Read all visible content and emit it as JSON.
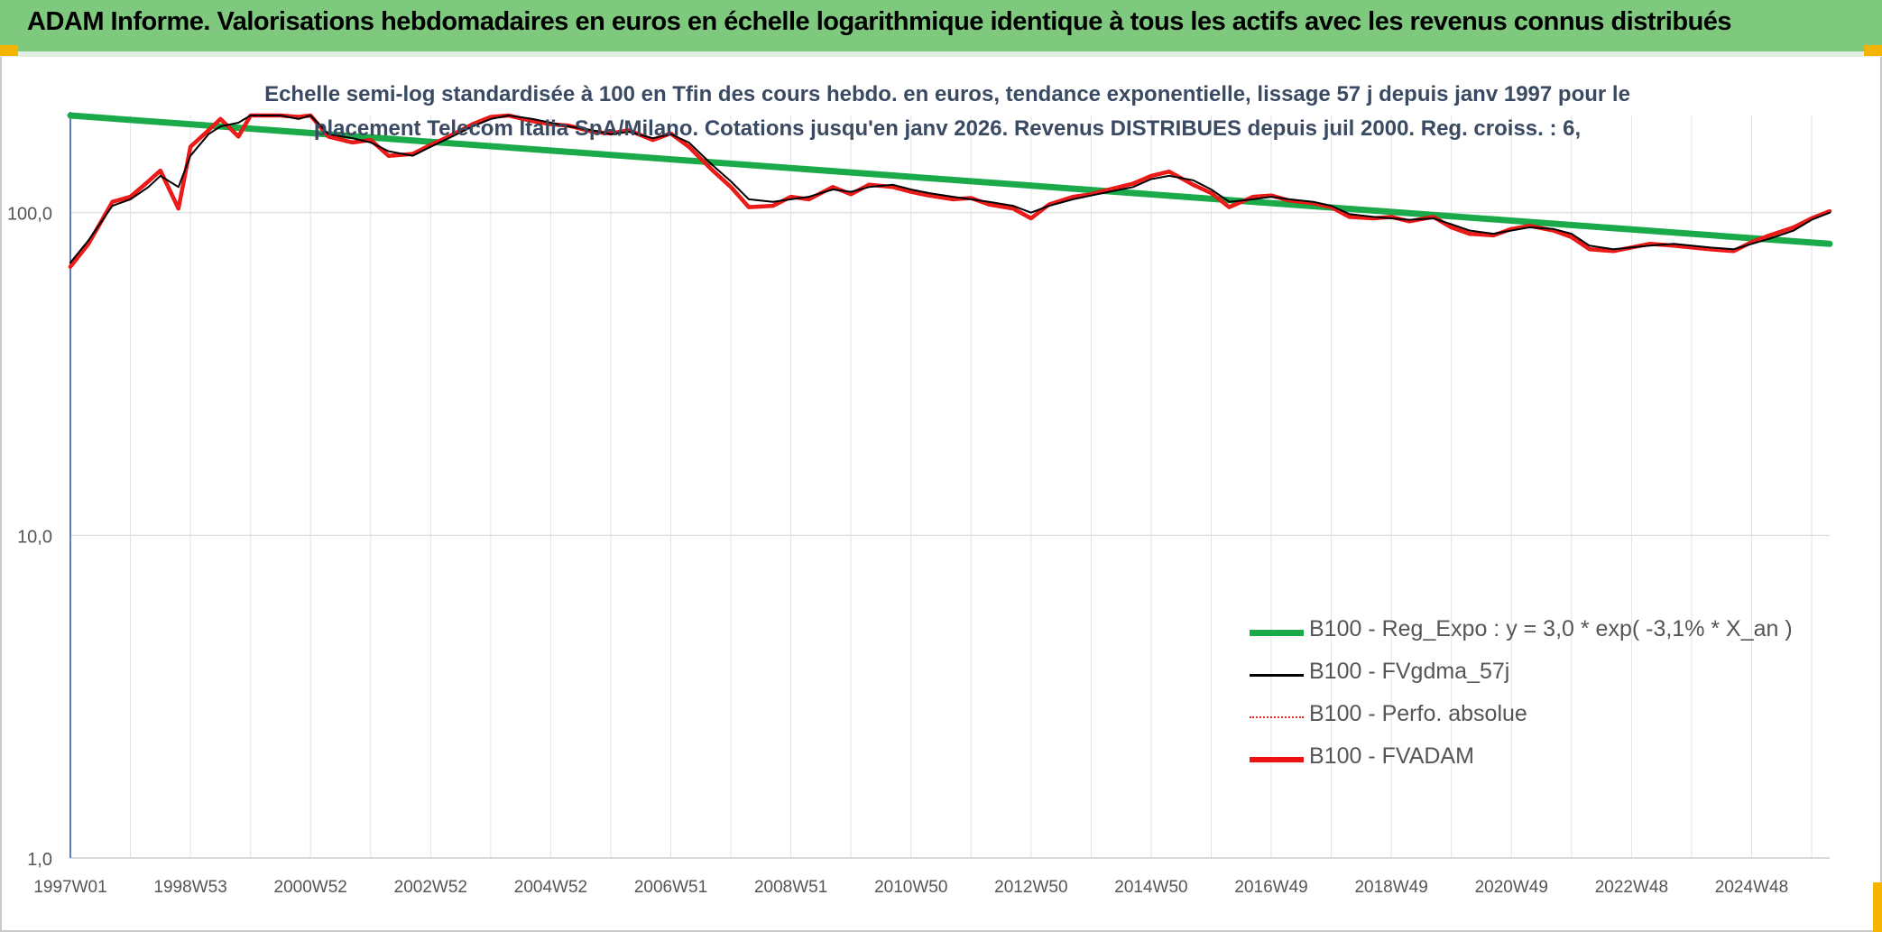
{
  "header": {
    "title": "ADAM Informe. Valorisations hebdomadaires en euros en échelle logarithmique identique à tous les actifs avec les revenus connus distribués"
  },
  "colors": {
    "header_bg": "#7fc97f",
    "accent_corner": "#f4b400",
    "subtitle_text": "#3b4a63",
    "trend_line": "#1aaa4a",
    "smoothed_line": "#000000",
    "perf_line": "#e8241e",
    "fvadam_line": "#ee1111"
  },
  "chart_data": {
    "type": "line",
    "title_lines": [
      "Echelle semi-log standardisée à 100 en Tfin des cours hebdo. en euros, tendance exponentielle, lissage 57 j depuis janv 1997 pour le",
      "placement Telecom Italia SpA/Milano. Cotations jusqu'en janv 2026. Revenus DISTRIBUES depuis juil 2000. Reg. croiss. : 6,"
    ],
    "yscale": "log",
    "ylim": [
      1,
      200
    ],
    "xlim": [
      1997.0,
      2026.3
    ],
    "y_ticks": [
      {
        "value": 1,
        "label": "1,0"
      },
      {
        "value": 10,
        "label": "10,0"
      },
      {
        "value": 100,
        "label": "100,0"
      }
    ],
    "x_ticks": [
      {
        "value": 1997.0,
        "label": "1997W01"
      },
      {
        "value": 1999.0,
        "label": "1998W53"
      },
      {
        "value": 2001.0,
        "label": "2000W52"
      },
      {
        "value": 2003.0,
        "label": "2002W52"
      },
      {
        "value": 2005.0,
        "label": "2004W52"
      },
      {
        "value": 2007.0,
        "label": "2006W51"
      },
      {
        "value": 2009.0,
        "label": "2008W51"
      },
      {
        "value": 2011.0,
        "label": "2010W50"
      },
      {
        "value": 2013.0,
        "label": "2012W50"
      },
      {
        "value": 2015.0,
        "label": "2014W50"
      },
      {
        "value": 2017.0,
        "label": "2016W49"
      },
      {
        "value": 2019.0,
        "label": "2018W49"
      },
      {
        "value": 2021.0,
        "label": "2020W49"
      },
      {
        "value": 2023.0,
        "label": "2022W48"
      },
      {
        "value": 2025.0,
        "label": "2024W48"
      }
    ],
    "grid": true,
    "legend_position": "bottom-right",
    "series": [
      {
        "key": "reg",
        "name": "B100 - Reg_Expo : y = 3,0 * exp( -3,1% *  X_an )",
        "style": "thick-green",
        "x": [
          1997.0,
          2026.3
        ],
        "y": [
          200,
          80
        ]
      },
      {
        "key": "fvgdma",
        "name": "B100 - FVgdma_57j",
        "style": "thin-black",
        "x": [
          1997.0,
          1997.3,
          1997.7,
          1998.0,
          1998.3,
          1998.5,
          1998.8,
          1999.0,
          1999.3,
          1999.5,
          1999.8,
          2000.0,
          2000.3,
          2000.5,
          2000.8,
          2001.0,
          2001.3,
          2001.7,
          2002.0,
          2002.3,
          2002.7,
          2003.0,
          2003.3,
          2003.7,
          2004.0,
          2004.3,
          2004.7,
          2005.0,
          2005.3,
          2005.7,
          2006.0,
          2006.3,
          2006.7,
          2007.0,
          2007.3,
          2007.7,
          2008.0,
          2008.3,
          2008.7,
          2009.0,
          2009.3,
          2009.7,
          2010.0,
          2010.3,
          2010.7,
          2011.0,
          2011.3,
          2011.7,
          2012.0,
          2012.3,
          2012.7,
          2013.0,
          2013.3,
          2013.7,
          2014.0,
          2014.3,
          2014.7,
          2015.0,
          2015.3,
          2015.7,
          2016.0,
          2016.3,
          2016.7,
          2017.0,
          2017.3,
          2017.7,
          2018.0,
          2018.3,
          2018.7,
          2019.0,
          2019.3,
          2019.7,
          2020.0,
          2020.3,
          2020.7,
          2021.0,
          2021.3,
          2021.7,
          2022.0,
          2022.3,
          2022.7,
          2023.0,
          2023.3,
          2023.7,
          2024.0,
          2024.3,
          2024.7,
          2025.0,
          2025.3,
          2025.7,
          2026.0,
          2026.3
        ],
        "y": [
          70,
          82,
          105,
          110,
          120,
          130,
          120,
          150,
          175,
          185,
          190,
          200,
          200,
          200,
          195,
          200,
          175,
          170,
          165,
          155,
          150,
          160,
          170,
          185,
          195,
          200,
          195,
          190,
          185,
          180,
          175,
          178,
          170,
          175,
          165,
          140,
          125,
          110,
          108,
          110,
          112,
          118,
          116,
          120,
          122,
          118,
          115,
          112,
          110,
          108,
          105,
          100,
          105,
          110,
          113,
          116,
          120,
          127,
          130,
          126,
          118,
          108,
          110,
          112,
          110,
          108,
          105,
          99,
          97,
          96,
          95,
          96,
          92,
          88,
          86,
          88,
          90,
          89,
          86,
          79,
          77,
          78,
          79,
          80,
          79,
          78,
          77,
          80,
          83,
          88,
          95,
          100
        ]
      },
      {
        "key": "perf",
        "name": "B100 - Perfo. absolue",
        "style": "dotted-red",
        "x": [
          1997.0,
          1997.3,
          1997.7,
          1998.0,
          1998.3,
          1998.5,
          1998.8,
          1999.0,
          1999.3,
          1999.5,
          1999.8,
          2000.0,
          2000.3,
          2000.5,
          2000.8,
          2001.0,
          2001.3,
          2001.7,
          2002.0,
          2002.3,
          2002.7,
          2003.0,
          2003.3,
          2003.7,
          2004.0,
          2004.3,
          2004.7,
          2005.0,
          2005.3,
          2005.7,
          2006.0,
          2006.3,
          2006.7,
          2007.0,
          2007.3,
          2007.7,
          2008.0,
          2008.3,
          2008.7,
          2009.0,
          2009.3,
          2009.7,
          2010.0,
          2010.3,
          2010.7,
          2011.0,
          2011.3,
          2011.7,
          2012.0,
          2012.3,
          2012.7,
          2013.0,
          2013.3,
          2013.7,
          2014.0,
          2014.3,
          2014.7,
          2015.0,
          2015.3,
          2015.7,
          2016.0,
          2016.3,
          2016.7,
          2017.0,
          2017.3,
          2017.7,
          2018.0,
          2018.3,
          2018.7,
          2019.0,
          2019.3,
          2019.7,
          2020.0,
          2020.3,
          2020.7,
          2021.0,
          2021.3,
          2021.7,
          2022.0,
          2022.3,
          2022.7,
          2023.0,
          2023.3,
          2023.7,
          2024.0,
          2024.3,
          2024.7,
          2025.0,
          2025.3,
          2025.7,
          2026.0,
          2026.3
        ],
        "y": [
          68,
          80,
          108,
          112,
          125,
          135,
          103,
          160,
          180,
          195,
          172,
          200,
          200,
          200,
          198,
          200,
          172,
          165,
          168,
          150,
          152,
          162,
          172,
          188,
          198,
          200,
          192,
          188,
          186,
          178,
          176,
          180,
          168,
          176,
          160,
          135,
          120,
          104,
          105,
          112,
          110,
          120,
          114,
          122,
          120,
          116,
          113,
          110,
          111,
          106,
          103,
          96,
          106,
          112,
          114,
          118,
          123,
          130,
          134,
          122,
          115,
          104,
          112,
          113,
          109,
          107,
          104,
          97,
          96,
          97,
          94,
          97,
          90,
          86,
          85,
          89,
          91,
          88,
          84,
          77,
          76,
          78,
          80,
          79,
          78,
          77,
          76,
          81,
          85,
          90,
          96,
          101
        ]
      },
      {
        "key": "fvadam",
        "name": "B100 - FVADAM",
        "style": "thick-red",
        "x": [
          1997.0,
          1997.3,
          1997.7,
          1998.0,
          1998.3,
          1998.5,
          1998.8,
          1999.0,
          1999.3,
          1999.5,
          1999.8,
          2000.0,
          2000.3,
          2000.5,
          2000.8,
          2001.0,
          2001.3,
          2001.7,
          2002.0,
          2002.3,
          2002.7,
          2003.0,
          2003.3,
          2003.7,
          2004.0,
          2004.3,
          2004.7,
          2005.0,
          2005.3,
          2005.7,
          2006.0,
          2006.3,
          2006.7,
          2007.0,
          2007.3,
          2007.7,
          2008.0,
          2008.3,
          2008.7,
          2009.0,
          2009.3,
          2009.7,
          2010.0,
          2010.3,
          2010.7,
          2011.0,
          2011.3,
          2011.7,
          2012.0,
          2012.3,
          2012.7,
          2013.0,
          2013.3,
          2013.7,
          2014.0,
          2014.3,
          2014.7,
          2015.0,
          2015.3,
          2015.7,
          2016.0,
          2016.3,
          2016.7,
          2017.0,
          2017.3,
          2017.7,
          2018.0,
          2018.3,
          2018.7,
          2019.0,
          2019.3,
          2019.7,
          2020.0,
          2020.3,
          2020.7,
          2021.0,
          2021.3,
          2021.7,
          2022.0,
          2022.3,
          2022.7,
          2023.0,
          2023.3,
          2023.7,
          2024.0,
          2024.3,
          2024.7,
          2025.0,
          2025.3,
          2025.7,
          2026.0,
          2026.3
        ],
        "y": [
          68,
          80,
          108,
          112,
          125,
          135,
          103,
          160,
          180,
          195,
          172,
          200,
          200,
          200,
          198,
          200,
          172,
          165,
          168,
          150,
          152,
          162,
          172,
          188,
          198,
          200,
          192,
          188,
          186,
          178,
          176,
          180,
          168,
          176,
          160,
          135,
          120,
          104,
          105,
          112,
          110,
          120,
          114,
          122,
          120,
          116,
          113,
          110,
          111,
          106,
          103,
          96,
          106,
          112,
          114,
          118,
          123,
          130,
          134,
          122,
          115,
          104,
          112,
          113,
          109,
          107,
          104,
          97,
          96,
          97,
          94,
          97,
          90,
          86,
          85,
          89,
          91,
          88,
          84,
          77,
          76,
          78,
          80,
          79,
          78,
          77,
          76,
          81,
          85,
          90,
          96,
          101
        ]
      }
    ]
  }
}
